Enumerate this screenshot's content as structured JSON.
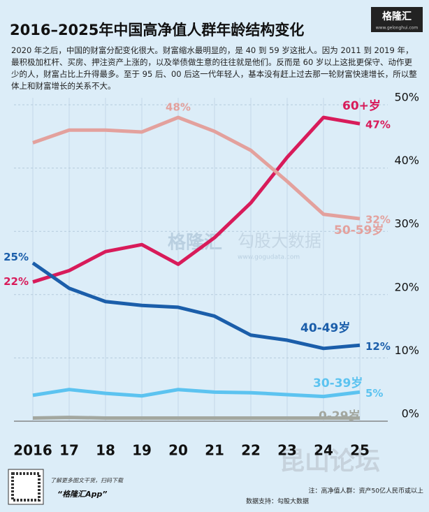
{
  "header": {
    "title": "2016–2025年中国高净值人群年龄结构变化",
    "logo": "格隆汇",
    "logo_url": "www.gelonghui.com"
  },
  "intro": "2020 年之后，中国的财富分配变化很大。财富缩水最明显的，是 40 到 59 岁这批人。因为 2011 到 2019 年，最积极加杠杆、买房、押注资产上涨的，以及举债做生意的往往就是他们。反而是 60 岁以上这批更保守、动作更少的人，财富占比上升得最多。至于 95 后、00 后这一代年轻人，基本没有赶上过去那一轮财富快速增长，所以整体上和财富增长的关系不大。",
  "watermark": {
    "brand": "格隆汇",
    "source": "勾股大数据",
    "url": "www.gogudata.com",
    "forum": "昆山论坛"
  },
  "chart_data": {
    "type": "line",
    "categories": [
      "2016",
      "17",
      "18",
      "19",
      "20",
      "21",
      "22",
      "23",
      "24",
      "25"
    ],
    "series": [
      {
        "name": "60+岁",
        "color": "#d81b5a",
        "values": [
          22,
          23.8,
          26.8,
          27.9,
          24.8,
          29,
          34.5,
          41.7,
          48,
          47
        ],
        "value_labels": [
          "22%",
          null,
          null,
          null,
          null,
          null,
          null,
          null,
          null,
          "47%"
        ]
      },
      {
        "name": "50-59岁",
        "color": "#e3a19d",
        "values": [
          44,
          46,
          46,
          45.7,
          48,
          45.8,
          42.8,
          37.9,
          32.7,
          32
        ],
        "value_labels": [
          null,
          null,
          null,
          null,
          "48%",
          null,
          null,
          null,
          null,
          "32%"
        ]
      },
      {
        "name": "40-49岁",
        "color": "#1b5eaa",
        "values": [
          25,
          21,
          18.9,
          18.3,
          18,
          16.6,
          13.6,
          12.8,
          11.5,
          12
        ],
        "value_labels": [
          "25%",
          null,
          null,
          null,
          null,
          null,
          null,
          null,
          null,
          "12%"
        ]
      },
      {
        "name": "30-39岁",
        "color": "#5cc3f0",
        "values": [
          4.1,
          5,
          4.4,
          4,
          5,
          4.6,
          4.5,
          4.2,
          3.9,
          4.6
        ],
        "value_labels": [
          null,
          null,
          null,
          null,
          null,
          null,
          null,
          null,
          null,
          "5%"
        ]
      },
      {
        "name": "0-29岁",
        "color": "#a3a79f",
        "values": [
          0.5,
          0.6,
          0.5,
          0.5,
          0.5,
          0.5,
          0.5,
          0.5,
          0.5,
          0.5
        ],
        "value_labels": [
          null,
          null,
          null,
          null,
          null,
          null,
          null,
          null,
          null,
          null
        ]
      }
    ],
    "ylim": [
      0,
      50
    ],
    "yticks": [
      {
        "value": 0,
        "label": "0%"
      },
      {
        "value": 10,
        "label": "10%"
      },
      {
        "value": 20,
        "label": "20%"
      },
      {
        "value": 30,
        "label": "30%"
      },
      {
        "value": 40,
        "label": "40%"
      },
      {
        "value": 50,
        "label": "50%"
      }
    ],
    "grid": true
  },
  "footer": {
    "qr_hint": "了解更多图文干货，扫码下载",
    "app": "“格隆汇App”",
    "note": "注：高净值人群：资产50亿人民币或以上",
    "data_source": "数据支持：勾股大数据"
  }
}
